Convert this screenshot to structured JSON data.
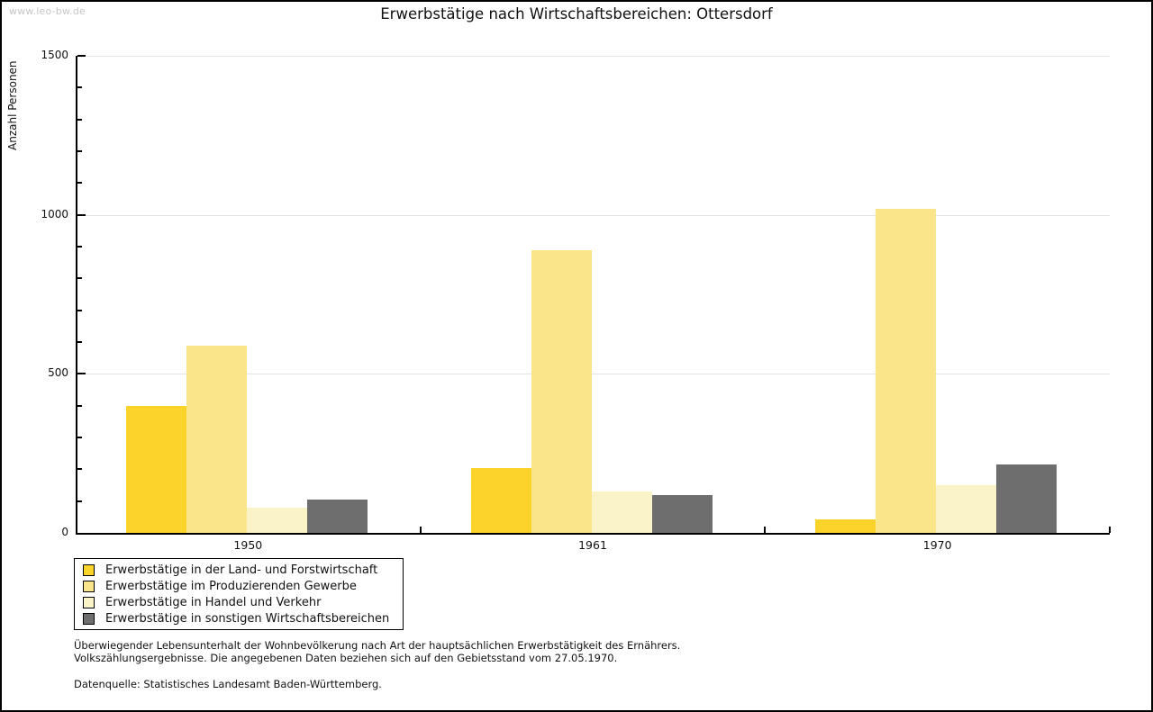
{
  "watermark": "www.leo-bw.de",
  "title": "Erwerbstätige nach Wirtschaftsbereichen: Ottersdorf",
  "chart_data": {
    "type": "bar",
    "title": "Erwerbstätige nach Wirtschaftsbereichen: Ottersdorf",
    "xlabel": "",
    "ylabel": "Anzahl Personen",
    "ylim": [
      0,
      1500
    ],
    "y_major_ticks": [
      0,
      500,
      1000,
      1500
    ],
    "y_minor_step": 100,
    "gridline_values": [
      500,
      1000,
      1500
    ],
    "grid": true,
    "legend_position": "bottom-left",
    "categories": [
      "1950",
      "1961",
      "1970"
    ],
    "series": [
      {
        "name": "Erwerbstätige in der Land- und Forstwirtschaft",
        "color": "#fbd32b",
        "values": [
          400,
          205,
          42
        ]
      },
      {
        "name": "Erwerbstätige im Produzierenden Gewerbe",
        "color": "#fae58a",
        "values": [
          590,
          890,
          1020
        ]
      },
      {
        "name": "Erwerbstätige in Handel und Verkehr",
        "color": "#faf3c8",
        "values": [
          80,
          130,
          150
        ]
      },
      {
        "name": "Erwerbstätige in sonstigen Wirtschaftsbereichen",
        "color": "#6e6e6e",
        "values": [
          105,
          118,
          215
        ]
      }
    ]
  },
  "notes": {
    "line1": "Überwiegender Lebensunterhalt der Wohnbevölkerung nach Art der hauptsächlichen Erwerbstätigkeit des Ernährers.",
    "line2": "Volkszählungsergebnisse. Die angegebenen Daten beziehen sich auf den Gebietsstand vom 27.05.1970.",
    "source": "Datenquelle: Statistisches Landesamt Baden-Württemberg."
  }
}
